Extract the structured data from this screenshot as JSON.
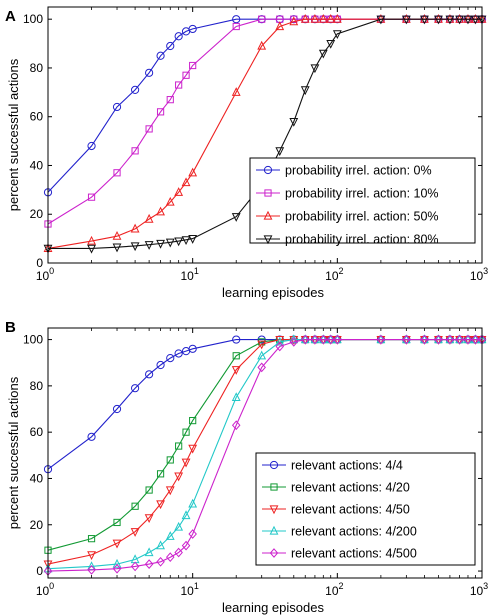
{
  "chart_data": [
    {
      "panel": "A",
      "type": "line",
      "xscale": "log",
      "xlim": [
        1,
        1000
      ],
      "ylim": [
        0,
        105
      ],
      "xlabel": "learning episodes",
      "ylabel": "percent successful actions",
      "x_ticks": [
        1,
        10,
        100,
        1000
      ],
      "x_tick_labels": [
        [
          "10",
          "0"
        ],
        [
          "10",
          "1"
        ],
        [
          "10",
          "2"
        ],
        [
          "10",
          "3"
        ]
      ],
      "y_ticks": [
        "0",
        "20",
        "40",
        "60",
        "80",
        "100"
      ],
      "legend_position": "bottom-right",
      "x": [
        1,
        2,
        3,
        4,
        5,
        6,
        7,
        8,
        9,
        10,
        20,
        30,
        40,
        50,
        60,
        70,
        80,
        90,
        100,
        200,
        300,
        400,
        500,
        600,
        700,
        800,
        900,
        1000
      ],
      "series": [
        {
          "name": "probability irrel. action: 0%",
          "color": "#2222cc",
          "marker": "circle",
          "values": [
            29,
            48,
            64,
            71,
            78,
            85,
            89,
            93,
            95,
            96,
            100,
            100,
            100,
            100,
            100,
            100,
            100,
            100,
            100,
            100,
            100,
            100,
            100,
            100,
            100,
            100,
            100,
            100
          ]
        },
        {
          "name": "probability irrel. action: 10%",
          "color": "#cc22cc",
          "marker": "square",
          "values": [
            16,
            27,
            37,
            46,
            55,
            62,
            67,
            73,
            77,
            81,
            97,
            100,
            100,
            100,
            100,
            100,
            100,
            100,
            100,
            100,
            100,
            100,
            100,
            100,
            100,
            100,
            100,
            100
          ]
        },
        {
          "name": "probability irrel. action: 50%",
          "color": "#ee2222",
          "marker": "triangle-up",
          "values": [
            6,
            9,
            11,
            14,
            18,
            21,
            25,
            29,
            33,
            37,
            70,
            89,
            97,
            99,
            100,
            100,
            100,
            100,
            100,
            100,
            100,
            100,
            100,
            100,
            100,
            100,
            100,
            100
          ]
        },
        {
          "name": "probability irrel. action: 80%",
          "color": "#111111",
          "marker": "triangle-down",
          "values": [
            6,
            6,
            6.5,
            7,
            7.5,
            8,
            8.5,
            9,
            9.5,
            10,
            19,
            32,
            46,
            58,
            71,
            80,
            86,
            90,
            94,
            100,
            100,
            100,
            100,
            100,
            100,
            100,
            100,
            100
          ]
        }
      ]
    },
    {
      "panel": "B",
      "type": "line",
      "xscale": "log",
      "xlim": [
        1,
        1000
      ],
      "ylim": [
        -3,
        105
      ],
      "xlabel": "learning episodes",
      "ylabel": "percent successful actions",
      "x_ticks": [
        1,
        10,
        100,
        1000
      ],
      "x_tick_labels": [
        [
          "10",
          "0"
        ],
        [
          "10",
          "1"
        ],
        [
          "10",
          "2"
        ],
        [
          "10",
          "3"
        ]
      ],
      "y_ticks": [
        "0",
        "20",
        "40",
        "60",
        "80",
        "100"
      ],
      "legend_position": "bottom-right",
      "x": [
        1,
        2,
        3,
        4,
        5,
        6,
        7,
        8,
        9,
        10,
        20,
        30,
        40,
        50,
        60,
        70,
        80,
        90,
        100,
        200,
        300,
        400,
        500,
        600,
        700,
        800,
        900,
        1000
      ],
      "series": [
        {
          "name": "relevant actions: 4/4",
          "color": "#2222cc",
          "marker": "circle",
          "values": [
            44,
            58,
            70,
            79,
            85,
            89,
            92,
            94,
            95,
            96,
            100,
            100,
            100,
            100,
            100,
            100,
            100,
            100,
            100,
            100,
            100,
            100,
            100,
            100,
            100,
            100,
            100,
            100
          ]
        },
        {
          "name": "relevant actions: 4/20",
          "color": "#119933",
          "marker": "square",
          "values": [
            9,
            14,
            21,
            28,
            35,
            42,
            48,
            54,
            60,
            65,
            93,
            99,
            100,
            100,
            100,
            100,
            100,
            100,
            100,
            100,
            100,
            100,
            100,
            100,
            100,
            100,
            100,
            100
          ]
        },
        {
          "name": "relevant actions: 4/50",
          "color": "#ee2222",
          "marker": "triangle-down",
          "values": [
            3,
            7,
            12,
            17,
            23,
            29,
            35,
            41,
            47,
            53,
            87,
            98,
            100,
            100,
            100,
            100,
            100,
            100,
            100,
            100,
            100,
            100,
            100,
            100,
            100,
            100,
            100,
            100
          ]
        },
        {
          "name": "relevant actions: 4/200",
          "color": "#22c8c8",
          "marker": "triangle-up",
          "values": [
            1,
            2,
            3,
            5,
            8,
            11,
            15,
            19,
            24,
            29,
            75,
            93,
            99,
            100,
            100,
            100,
            100,
            100,
            100,
            100,
            100,
            100,
            100,
            100,
            100,
            100,
            100,
            100
          ]
        },
        {
          "name": "relevant actions: 4/500",
          "color": "#cc22cc",
          "marker": "diamond",
          "values": [
            0,
            0.5,
            1,
            2,
            3,
            4,
            6,
            8,
            11,
            16,
            63,
            88,
            97,
            99,
            100,
            100,
            100,
            100,
            100,
            100,
            100,
            100,
            100,
            100,
            100,
            100,
            100,
            100
          ]
        }
      ]
    }
  ]
}
